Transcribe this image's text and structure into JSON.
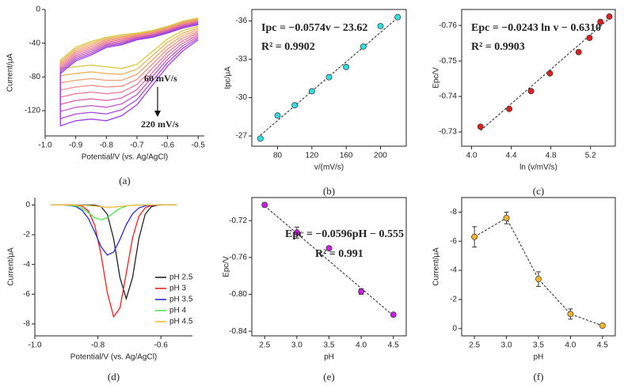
{
  "chart_data": [
    {
      "type": "line",
      "caption": "(a)",
      "x_label": "Potential/V (vs. Ag/AgCl)",
      "y_label": "Current/μA",
      "x": [
        -0.5,
        -0.55,
        -0.6,
        -0.65,
        -0.7,
        -0.75,
        -0.8,
        -0.85,
        -0.9,
        -0.95,
        -0.95,
        -0.9,
        -0.85,
        -0.8,
        -0.75,
        -0.7,
        -0.65,
        -0.6,
        -0.55,
        -0.5
      ],
      "series": [
        {
          "color": "#d8c93c",
          "values": [
            -20,
            -25,
            -35,
            -50,
            -65,
            -70,
            -68,
            -66,
            -68,
            -70,
            -60,
            -45,
            -38,
            -33,
            -30,
            -28,
            -25,
            -20,
            -14,
            -10
          ]
        },
        {
          "color": "#e8b35a",
          "values": [
            -22,
            -28,
            -39,
            -55,
            -71,
            -77,
            -76,
            -74,
            -76,
            -78.5,
            -62,
            -47,
            -40,
            -34.5,
            -31.5,
            -29,
            -26,
            -21,
            -15,
            -11
          ]
        },
        {
          "color": "#f0a070",
          "values": [
            -24,
            -31,
            -43,
            -60,
            -77,
            -84,
            -84,
            -82,
            -84,
            -87,
            -64,
            -49,
            -42,
            -36,
            -33,
            -30,
            -27,
            -22,
            -16,
            -12
          ]
        },
        {
          "color": "#f08a84",
          "values": [
            -26,
            -34,
            -47,
            -65,
            -83,
            -91,
            -92,
            -90,
            -92,
            -95.5,
            -66,
            -51,
            -44,
            -37.5,
            -34.5,
            -31,
            -28,
            -23,
            -17,
            -13
          ]
        },
        {
          "color": "#e87898",
          "values": [
            -28,
            -37,
            -51,
            -70,
            -89,
            -98,
            -100,
            -98,
            -100,
            -104,
            -68,
            -53,
            -46,
            -39,
            -36,
            -32,
            -29,
            -24,
            -18,
            -14
          ]
        },
        {
          "color": "#d868ac",
          "values": [
            -30,
            -40,
            -55,
            -75,
            -95,
            -105,
            -108,
            -106,
            -108,
            -112.5,
            -70,
            -55,
            -48,
            -40.5,
            -37.5,
            -33,
            -30,
            -25,
            -19,
            -15
          ]
        },
        {
          "color": "#c058c0",
          "values": [
            -32,
            -43,
            -59,
            -80,
            -101,
            -112,
            -116,
            -114,
            -116,
            -121,
            -72,
            -57,
            -50,
            -42,
            -39,
            -34,
            -31,
            -26,
            -20,
            -16
          ]
        },
        {
          "color": "#a84ad4",
          "values": [
            -34,
            -46,
            -63,
            -85,
            -107,
            -119,
            -124,
            -122,
            -124,
            -129.5,
            -74,
            -59,
            -52,
            -43.5,
            -40.5,
            -35,
            -32,
            -27,
            -21,
            -17
          ]
        },
        {
          "color": "#9a3de6",
          "values": [
            -36,
            -49,
            -67,
            -90,
            -113,
            -126,
            -132,
            -130,
            -132,
            -138,
            -76,
            -61,
            -54,
            -45,
            -42,
            -36,
            -33,
            -28,
            -22,
            -18
          ]
        }
      ],
      "annotations": [
        "60 mV/s",
        "220 mV/s"
      ],
      "xlim": [
        -1.0,
        -0.48
      ],
      "ylim": [
        -150,
        0
      ],
      "xticks": [
        {
          "value": -1.0,
          "label": "-1.0"
        },
        -0.9,
        -0.8,
        -0.7,
        -0.6,
        -0.5
      ],
      "yticks": [
        0,
        -40,
        -80,
        -120
      ],
      "frame": false
    },
    {
      "type": "scatter",
      "caption": "(b)",
      "x_label": "v/(mV/s)",
      "y_label": "Ipc/μA",
      "x": [
        60,
        80,
        100,
        120,
        140,
        160,
        180,
        200,
        220
      ],
      "series": [
        {
          "color": "#2ee0e0",
          "values": [
            -26.8,
            -28.6,
            -29.4,
            -30.5,
            -31.6,
            -32.4,
            -34.0,
            -35.6,
            -36.3
          ]
        }
      ],
      "fit": {
        "x": [
          60,
          220
        ],
        "values": [
          -27.06,
          -36.25
        ]
      },
      "annotations": [
        "Ipc = −0.0574v − 23.62",
        "R² = 0.9902"
      ],
      "xlim": [
        50,
        230
      ],
      "ylim": [
        -26.2,
        -36.9
      ],
      "xticks": [
        80,
        120,
        160,
        200
      ],
      "yticks": [
        -27,
        -30,
        -33,
        -36
      ],
      "frame": true
    },
    {
      "type": "scatter",
      "caption": "(c)",
      "x_label": "ln (v/mV/s)",
      "y_label": "Epc/V",
      "x": [
        4.09,
        4.38,
        4.6,
        4.79,
        5.08,
        5.19,
        5.3,
        5.39
      ],
      "series": [
        {
          "color": "#e02020",
          "values": [
            -0.7315,
            -0.7365,
            -0.7415,
            -0.7465,
            -0.7525,
            -0.7565,
            -0.761,
            -0.7625
          ]
        }
      ],
      "fit": {
        "x": [
          4.09,
          5.39
        ],
        "values": [
          -0.7304,
          -0.762
        ]
      },
      "annotations": [
        "Epc = −0.0243 ln v − 0.6310",
        "R² = 0.9903"
      ],
      "xlim": [
        3.9,
        5.45
      ],
      "ylim": [
        -0.726,
        -0.7645
      ],
      "xticks": [
        {
          "value": 4.0,
          "label": "4.0"
        },
        4.4,
        4.8,
        5.2
      ],
      "yticks": [
        -0.73,
        -0.74,
        -0.75,
        -0.76
      ],
      "frame": true
    },
    {
      "type": "line",
      "caption": "(d)",
      "x_label": "Potential/V (vs. Ag/AgCl)",
      "y_label": "Current/μA",
      "x": [
        -0.95,
        -0.93,
        -0.91,
        -0.89,
        -0.87,
        -0.85,
        -0.83,
        -0.81,
        -0.79,
        -0.77,
        -0.75,
        -0.73,
        -0.71,
        -0.69,
        -0.67,
        -0.65,
        -0.63,
        -0.61,
        -0.59,
        -0.57,
        -0.55
      ],
      "series": [
        {
          "name": "pH 2.5",
          "color": "#222222",
          "values": [
            0,
            0,
            0,
            0,
            0,
            0,
            0,
            -0.01,
            -0.11,
            -0.63,
            -2.27,
            -4.88,
            -6.3,
            -4.88,
            -2.27,
            -0.63,
            -0.11,
            -0.01,
            0,
            0,
            0
          ]
        },
        {
          "name": "pH 3",
          "color": "#e8211f",
          "values": [
            0,
            0,
            0,
            0,
            -0.01,
            -0.08,
            -0.4,
            -1.35,
            -3.33,
            -5.89,
            -7.52,
            -6.93,
            -4.61,
            -2.21,
            -0.77,
            -0.19,
            -0.03,
            0,
            0,
            0,
            0
          ]
        },
        {
          "name": "pH 3.5",
          "color": "#2a2ad4",
          "values": [
            0,
            0,
            0,
            -0.03,
            -0.11,
            -0.36,
            -0.91,
            -1.81,
            -2.8,
            -3.37,
            -3.17,
            -2.32,
            -1.32,
            -0.59,
            -0.2,
            -0.05,
            -0.01,
            0,
            0,
            0,
            0
          ]
        },
        {
          "name": "pH 4",
          "color": "#4ee64e",
          "values": [
            0,
            0,
            0,
            -0.02,
            -0.07,
            -0.23,
            -0.52,
            -0.85,
            -1.0,
            -0.85,
            -0.52,
            -0.23,
            -0.07,
            -0.02,
            0,
            0,
            0,
            0,
            0,
            0,
            0
          ]
        },
        {
          "name": "pH 4.5",
          "color": "#f5b93a",
          "values": [
            0,
            0,
            0,
            0,
            0,
            -0.01,
            -0.03,
            -0.07,
            -0.12,
            -0.15,
            -0.14,
            -0.1,
            -0.05,
            -0.02,
            -0.01,
            0,
            0,
            0,
            0,
            0,
            0
          ]
        }
      ],
      "legend": "lower right",
      "xlim": [
        -1.0,
        -0.5
      ],
      "ylim": [
        -8.8,
        0.5
      ],
      "xticks": [
        {
          "value": -1.0,
          "label": "-1.0"
        },
        -0.8,
        -0.6
      ],
      "yticks": [
        0,
        -2,
        -4,
        -6,
        -8
      ],
      "frame": false
    },
    {
      "type": "scatter",
      "caption": "(e)",
      "x_label": "pH",
      "y_label": "Epc/V",
      "x": [
        2.5,
        3.0,
        3.5,
        4.0,
        4.5
      ],
      "series": [
        {
          "color": "#c81ee0",
          "values": [
            -0.703,
            -0.733,
            -0.75,
            -0.797,
            -0.822
          ],
          "errors": [
            0.002,
            0.006,
            0.002,
            0.003,
            0.002
          ]
        }
      ],
      "fit": {
        "x": [
          2.5,
          4.5
        ],
        "values": [
          -0.704,
          -0.8232
        ]
      },
      "annotations": [
        "Epc = −0.0596pH − 0.555",
        "R² = 0.991"
      ],
      "xlim": [
        2.3,
        4.7
      ],
      "ylim": [
        -0.845,
        -0.695
      ],
      "xticks": [
        2.5,
        {
          "value": 3.0,
          "label": "3.0"
        },
        3.5,
        {
          "value": 4.0,
          "label": "4.0"
        },
        4.5
      ],
      "yticks": [
        -0.72,
        -0.76,
        {
          "value": -0.8,
          "label": "-0.80"
        },
        -0.84
      ],
      "frame": true
    },
    {
      "type": "scatter",
      "caption": "(f)",
      "x_label": "pH",
      "y_label": "Current/μA",
      "x": [
        2.5,
        3.0,
        3.5,
        4.0,
        4.5
      ],
      "series": [
        {
          "color": "#f1b52c",
          "values": [
            -6.3,
            -7.6,
            -3.4,
            -1.0,
            -0.2
          ],
          "errors": [
            0.7,
            0.4,
            0.5,
            0.35,
            0.1
          ],
          "connect": true
        }
      ],
      "xlim": [
        2.3,
        4.7
      ],
      "ylim": [
        0.5,
        -9.0
      ],
      "xticks": [
        2.5,
        {
          "value": 3.0,
          "label": "3.0"
        },
        3.5,
        {
          "value": 4.0,
          "label": "4.0"
        },
        4.5
      ],
      "yticks": [
        -8,
        -6,
        -4,
        -2,
        0
      ],
      "frame": true
    }
  ]
}
